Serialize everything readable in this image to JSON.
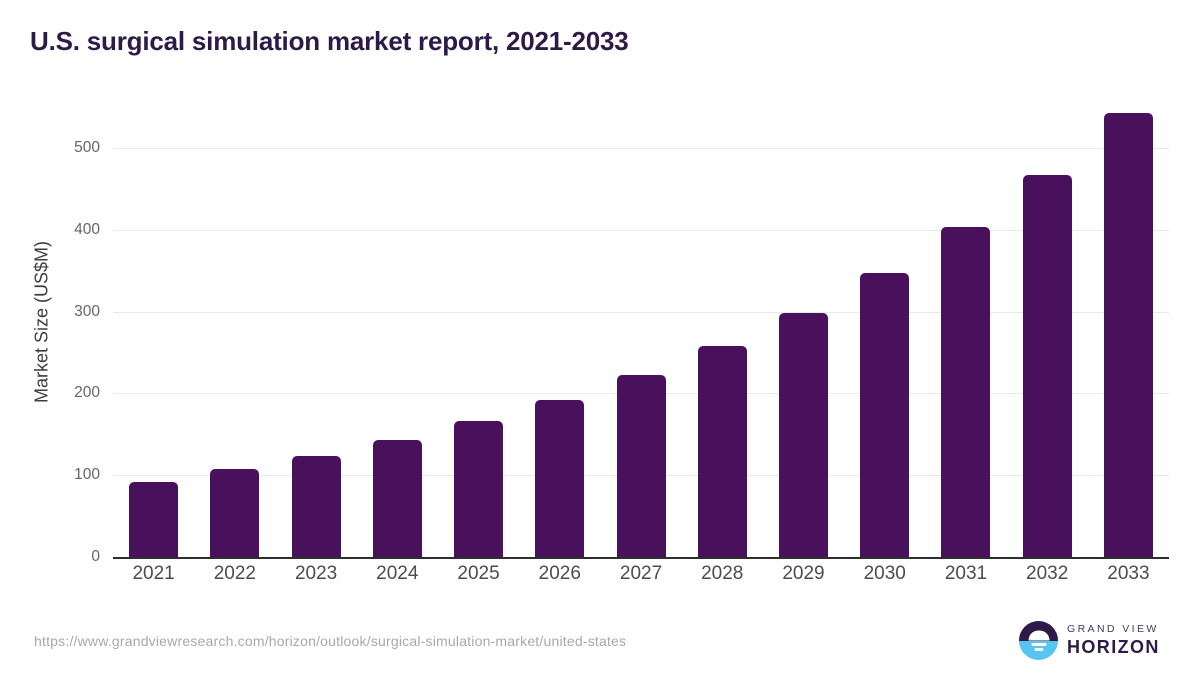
{
  "chart_data": {
    "type": "bar",
    "title": "U.S. surgical simulation market report, 2021-2033",
    "ylabel": "Market Size (US$M)",
    "xlabel": "",
    "categories": [
      "2021",
      "2022",
      "2023",
      "2024",
      "2025",
      "2026",
      "2027",
      "2028",
      "2029",
      "2030",
      "2031",
      "2032",
      "2033"
    ],
    "values": [
      92,
      108,
      123,
      143,
      166,
      192,
      222,
      258,
      299,
      347,
      403,
      467,
      543
    ],
    "unit": "US$M",
    "ylim": [
      0,
      565
    ],
    "yticks": [
      0,
      100,
      200,
      300,
      400,
      500
    ],
    "grid": "horizontal-only",
    "legend": "none",
    "bar_color": "#49115c"
  },
  "footer": {
    "source_url": "https://www.grandviewresearch.com/horizon/outlook/surgical-simulation-market/united-states",
    "logo": {
      "line1": "GRAND VIEW",
      "line2": "HORIZON"
    }
  },
  "colors": {
    "title": "#2e1a47",
    "bar": "#49115c",
    "gridline": "#e8e8e8",
    "axis_line": "#2e2e2e",
    "y_tick_text": "#666666",
    "x_tick_text": "#4c4c4c",
    "source_text": "#a8a8a8",
    "logo_purple": "#2e1a47",
    "logo_blue": "#58c4f0"
  }
}
